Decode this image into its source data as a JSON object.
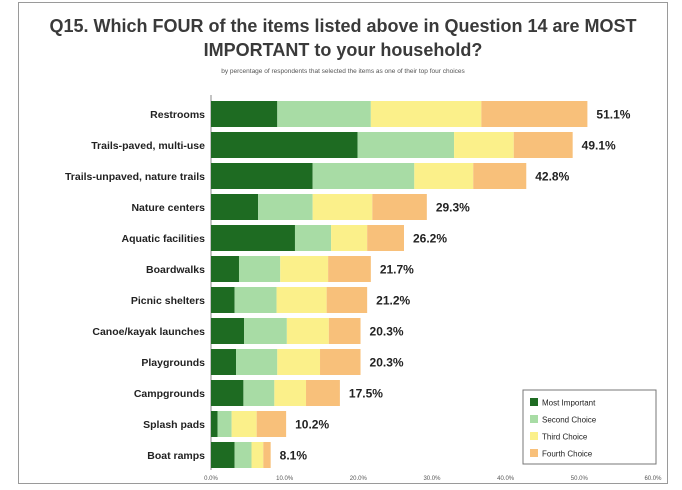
{
  "chart_data": {
    "type": "bar",
    "orientation": "horizontal",
    "stacked": true,
    "title": "Q15. Which FOUR of the items listed above in Question 14 are MOST IMPORTANT to your household?",
    "subtitle": "by percentage of respondents that selected the items as one of their top four choices",
    "categories": [
      "Restrooms",
      "Trails-paved, multi-use",
      "Trails-unpaved, nature trails",
      "Nature centers",
      "Aquatic facilities",
      "Boardwalks",
      "Picnic shelters",
      "Canoe/kayak launches",
      "Playgrounds",
      "Campgrounds",
      "Splash pads",
      "Boat ramps"
    ],
    "totals": [
      51.1,
      49.1,
      42.8,
      29.3,
      26.2,
      21.7,
      21.2,
      20.3,
      20.3,
      17.5,
      10.2,
      8.1
    ],
    "total_labels": [
      "51.1%",
      "49.1%",
      "42.8%",
      "29.3%",
      "26.2%",
      "21.7%",
      "21.2%",
      "20.3%",
      "20.3%",
      "17.5%",
      "10.2%",
      "8.1%"
    ],
    "series": [
      {
        "name": "Most Important",
        "color": "#1e6b22",
        "values": [
          9.0,
          19.9,
          13.8,
          6.4,
          11.4,
          3.8,
          3.2,
          4.5,
          3.4,
          4.4,
          0.9,
          3.2
        ]
      },
      {
        "name": "Second Choice",
        "color": "#a8dca5",
        "values": [
          12.7,
          13.1,
          13.8,
          7.4,
          4.9,
          5.6,
          5.7,
          5.8,
          5.6,
          4.2,
          1.9,
          2.3
        ]
      },
      {
        "name": "Third Choice",
        "color": "#fbf08a",
        "values": [
          15.0,
          8.1,
          8.0,
          8.1,
          4.9,
          6.5,
          6.8,
          5.7,
          5.8,
          4.3,
          3.4,
          1.6
        ]
      },
      {
        "name": "Fourth Choice",
        "color": "#f8c07a",
        "values": [
          14.4,
          8.0,
          7.2,
          7.4,
          5.0,
          5.8,
          5.5,
          4.3,
          5.5,
          4.6,
          4.0,
          1.0
        ]
      }
    ],
    "xlim": [
      0,
      60
    ],
    "xticks": [
      "0.0%",
      "10.0%",
      "20.0%",
      "30.0%",
      "40.0%",
      "50.0%",
      "60.0%"
    ],
    "legend_position": "bottom-right",
    "grid": false
  }
}
